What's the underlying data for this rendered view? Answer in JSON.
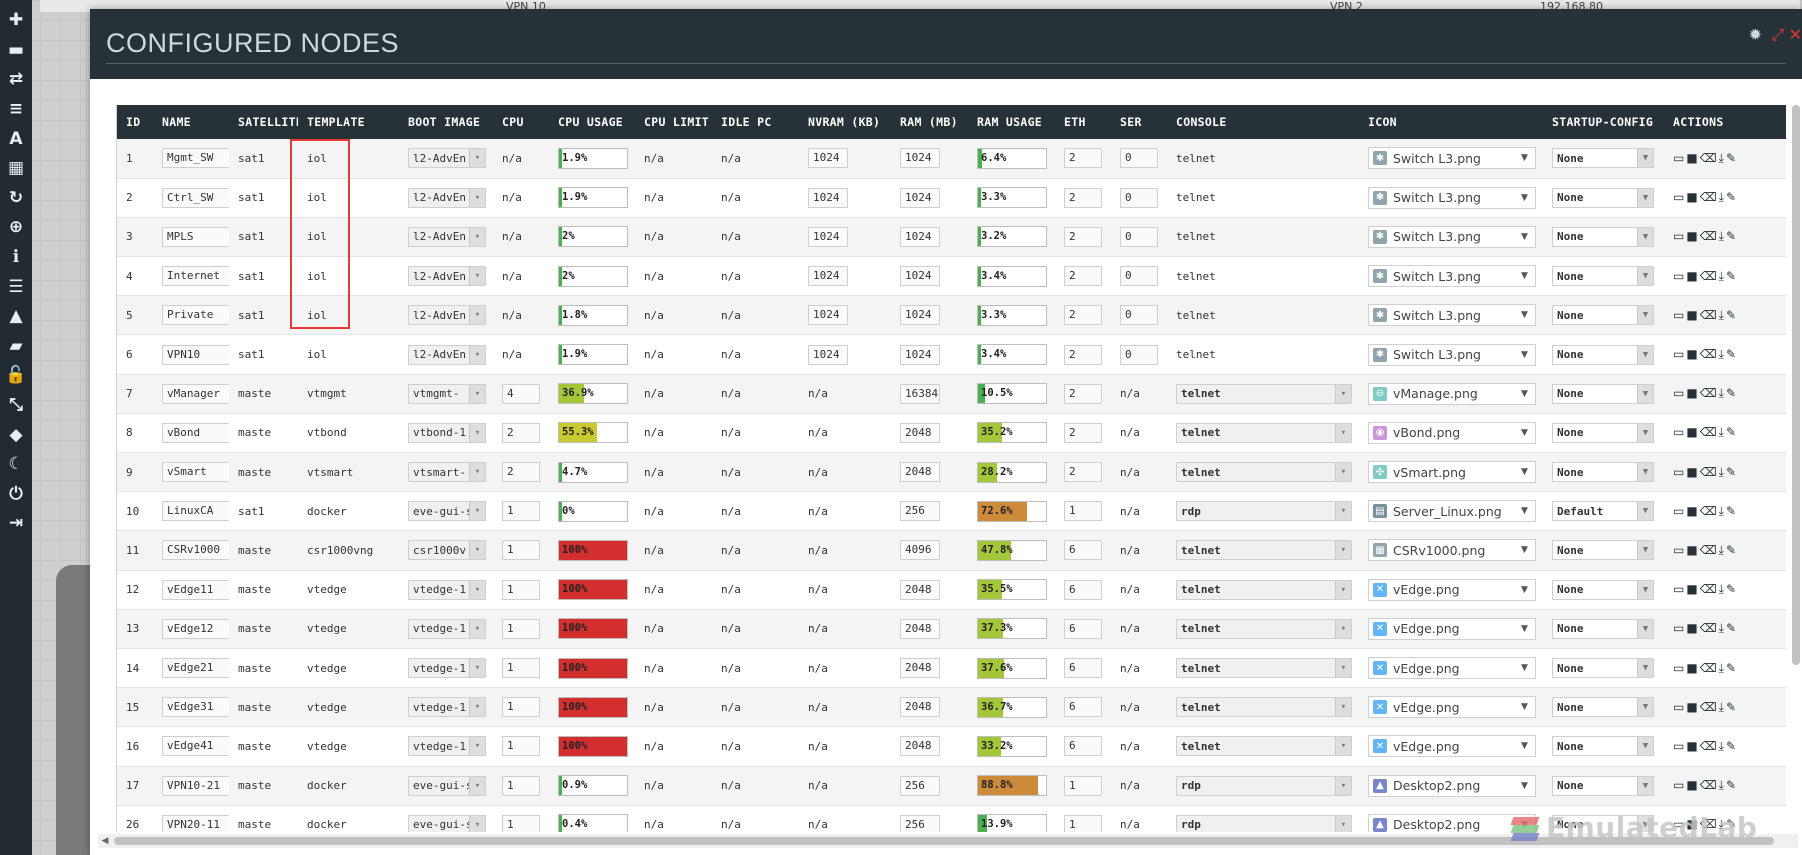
{
  "background": {
    "labels": [
      "VPN 10",
      "VPN 2",
      "192.168.80"
    ]
  },
  "sidebar": {
    "icons": [
      "plus-icon",
      "server-icon",
      "swap-icon",
      "align-left-icon",
      "text-icon",
      "grid-icon",
      "refresh-icon",
      "zoom-icon",
      "info-icon",
      "list-icon",
      "graduation-icon",
      "chat-icon",
      "lock-icon",
      "expand-icon",
      "tag-icon",
      "moon-icon",
      "power-icon",
      "logout-icon"
    ]
  },
  "modal": {
    "title": "CONFIGURED NODES",
    "controls": [
      "gear-icon",
      "expand-icon",
      "close-icon"
    ]
  },
  "table": {
    "headers": [
      "ID",
      "NAME",
      "SATELLITE",
      "TEMPLATE",
      "BOOT IMAGE",
      "CPU",
      "CPU USAGE",
      "CPU LIMIT",
      "IDLE PC",
      "NVRAM (KB)",
      "RAM (MB)",
      "RAM USAGE",
      "ETH",
      "SER",
      "CONSOLE",
      "ICON",
      "STARTUP-CONFIG",
      "ACTIONS"
    ],
    "rows": [
      {
        "id": "1",
        "name": "Mgmt_SW",
        "satellite": "sat1",
        "template": "iol",
        "boot": "l2-AdvEn",
        "cpu": "n/a",
        "cpu_usage": "1.9%",
        "cpu_pct": 1.9,
        "cpu_limit": "n/a",
        "idle_pc": "n/a",
        "nvram": "1024",
        "ram": "1024",
        "ram_usage": "6.4%",
        "ram_pct": 6.4,
        "eth": "2",
        "ser": "0",
        "console": "telnet",
        "icon": "Switch L3.png",
        "icon_type": "switch",
        "startup": "None"
      },
      {
        "id": "2",
        "name": "Ctrl_SW",
        "satellite": "sat1",
        "template": "iol",
        "boot": "l2-AdvEn",
        "cpu": "n/a",
        "cpu_usage": "1.9%",
        "cpu_pct": 1.9,
        "cpu_limit": "n/a",
        "idle_pc": "n/a",
        "nvram": "1024",
        "ram": "1024",
        "ram_usage": "3.3%",
        "ram_pct": 3.3,
        "eth": "2",
        "ser": "0",
        "console": "telnet",
        "icon": "Switch L3.png",
        "icon_type": "switch",
        "startup": "None"
      },
      {
        "id": "3",
        "name": "MPLS",
        "satellite": "sat1",
        "template": "iol",
        "boot": "l2-AdvEn",
        "cpu": "n/a",
        "cpu_usage": "2%",
        "cpu_pct": 2,
        "cpu_limit": "n/a",
        "idle_pc": "n/a",
        "nvram": "1024",
        "ram": "1024",
        "ram_usage": "3.2%",
        "ram_pct": 3.2,
        "eth": "2",
        "ser": "0",
        "console": "telnet",
        "icon": "Switch L3.png",
        "icon_type": "switch",
        "startup": "None"
      },
      {
        "id": "4",
        "name": "Internet",
        "satellite": "sat1",
        "template": "iol",
        "boot": "l2-AdvEn",
        "cpu": "n/a",
        "cpu_usage": "2%",
        "cpu_pct": 2,
        "cpu_limit": "n/a",
        "idle_pc": "n/a",
        "nvram": "1024",
        "ram": "1024",
        "ram_usage": "3.4%",
        "ram_pct": 3.4,
        "eth": "2",
        "ser": "0",
        "console": "telnet",
        "icon": "Switch L3.png",
        "icon_type": "switch",
        "startup": "None"
      },
      {
        "id": "5",
        "name": "Private",
        "satellite": "sat1",
        "template": "iol",
        "boot": "l2-AdvEn",
        "cpu": "n/a",
        "cpu_usage": "1.8%",
        "cpu_pct": 1.8,
        "cpu_limit": "n/a",
        "idle_pc": "n/a",
        "nvram": "1024",
        "ram": "1024",
        "ram_usage": "3.3%",
        "ram_pct": 3.3,
        "eth": "2",
        "ser": "0",
        "console": "telnet",
        "icon": "Switch L3.png",
        "icon_type": "switch",
        "startup": "None"
      },
      {
        "id": "6",
        "name": "VPN10",
        "satellite": "sat1",
        "template": "iol",
        "boot": "l2-AdvEn",
        "cpu": "n/a",
        "cpu_usage": "1.9%",
        "cpu_pct": 1.9,
        "cpu_limit": "n/a",
        "idle_pc": "n/a",
        "nvram": "1024",
        "ram": "1024",
        "ram_usage": "3.4%",
        "ram_pct": 3.4,
        "eth": "2",
        "ser": "0",
        "console": "telnet",
        "icon": "Switch L3.png",
        "icon_type": "switch",
        "startup": "None"
      },
      {
        "id": "7",
        "name": "vManager",
        "satellite": "maste",
        "template": "vtmgmt",
        "boot": "vtmgmt-",
        "cpu": "4",
        "cpu_usage": "36.9%",
        "cpu_pct": 36.9,
        "cpu_limit": "n/a",
        "idle_pc": "n/a",
        "nvram": "n/a",
        "ram": "16384",
        "ram_usage": "10.5%",
        "ram_pct": 10.5,
        "eth": "2",
        "ser": "n/a",
        "console": "telnet",
        "icon": "vManage.png",
        "icon_type": "vmanage",
        "startup": "None"
      },
      {
        "id": "8",
        "name": "vBond",
        "satellite": "maste",
        "template": "vtbond",
        "boot": "vtbond-1",
        "cpu": "2",
        "cpu_usage": "55.3%",
        "cpu_pct": 55.3,
        "cpu_limit": "n/a",
        "idle_pc": "n/a",
        "nvram": "n/a",
        "ram": "2048",
        "ram_usage": "35.2%",
        "ram_pct": 35.2,
        "eth": "2",
        "ser": "n/a",
        "console": "telnet",
        "icon": "vBond.png",
        "icon_type": "vbond",
        "startup": "None"
      },
      {
        "id": "9",
        "name": "vSmart",
        "satellite": "maste",
        "template": "vtsmart",
        "boot": "vtsmart-",
        "cpu": "2",
        "cpu_usage": "4.7%",
        "cpu_pct": 4.7,
        "cpu_limit": "n/a",
        "idle_pc": "n/a",
        "nvram": "n/a",
        "ram": "2048",
        "ram_usage": "28.2%",
        "ram_pct": 28.2,
        "eth": "2",
        "ser": "n/a",
        "console": "telnet",
        "icon": "vSmart.png",
        "icon_type": "vsmart",
        "startup": "None"
      },
      {
        "id": "10",
        "name": "LinuxCA",
        "satellite": "sat1",
        "template": "docker",
        "boot": "eve-gui-s",
        "cpu": "1",
        "cpu_usage": "0%",
        "cpu_pct": 0,
        "cpu_limit": "n/a",
        "idle_pc": "n/a",
        "nvram": "n/a",
        "ram": "256",
        "ram_usage": "72.6%",
        "ram_pct": 72.6,
        "eth": "1",
        "ser": "n/a",
        "console": "rdp",
        "icon": "Server_Linux.png",
        "icon_type": "server",
        "startup": "Default"
      },
      {
        "id": "11",
        "name": "CSRv1000",
        "satellite": "maste",
        "template": "csr1000vng",
        "boot": "csr1000v",
        "cpu": "1",
        "cpu_usage": "100%",
        "cpu_pct": 100,
        "cpu_limit": "n/a",
        "idle_pc": "n/a",
        "nvram": "n/a",
        "ram": "4096",
        "ram_usage": "47.8%",
        "ram_pct": 47.8,
        "eth": "6",
        "ser": "n/a",
        "console": "telnet",
        "icon": "CSRv1000.png",
        "icon_type": "csr",
        "startup": "None"
      },
      {
        "id": "12",
        "name": "vEdge11",
        "satellite": "maste",
        "template": "vtedge",
        "boot": "vtedge-1",
        "cpu": "1",
        "cpu_usage": "100%",
        "cpu_pct": 100,
        "cpu_limit": "n/a",
        "idle_pc": "n/a",
        "nvram": "n/a",
        "ram": "2048",
        "ram_usage": "35.5%",
        "ram_pct": 35.5,
        "eth": "6",
        "ser": "n/a",
        "console": "telnet",
        "icon": "vEdge.png",
        "icon_type": "vedge",
        "startup": "None"
      },
      {
        "id": "13",
        "name": "vEdge12",
        "satellite": "maste",
        "template": "vtedge",
        "boot": "vtedge-1",
        "cpu": "1",
        "cpu_usage": "100%",
        "cpu_pct": 100,
        "cpu_limit": "n/a",
        "idle_pc": "n/a",
        "nvram": "n/a",
        "ram": "2048",
        "ram_usage": "37.3%",
        "ram_pct": 37.3,
        "eth": "6",
        "ser": "n/a",
        "console": "telnet",
        "icon": "vEdge.png",
        "icon_type": "vedge",
        "startup": "None"
      },
      {
        "id": "14",
        "name": "vEdge21",
        "satellite": "maste",
        "template": "vtedge",
        "boot": "vtedge-1",
        "cpu": "1",
        "cpu_usage": "100%",
        "cpu_pct": 100,
        "cpu_limit": "n/a",
        "idle_pc": "n/a",
        "nvram": "n/a",
        "ram": "2048",
        "ram_usage": "37.6%",
        "ram_pct": 37.6,
        "eth": "6",
        "ser": "n/a",
        "console": "telnet",
        "icon": "vEdge.png",
        "icon_type": "vedge",
        "startup": "None"
      },
      {
        "id": "15",
        "name": "vEdge31",
        "satellite": "maste",
        "template": "vtedge",
        "boot": "vtedge-1",
        "cpu": "1",
        "cpu_usage": "100%",
        "cpu_pct": 100,
        "cpu_limit": "n/a",
        "idle_pc": "n/a",
        "nvram": "n/a",
        "ram": "2048",
        "ram_usage": "36.7%",
        "ram_pct": 36.7,
        "eth": "6",
        "ser": "n/a",
        "console": "telnet",
        "icon": "vEdge.png",
        "icon_type": "vedge",
        "startup": "None"
      },
      {
        "id": "16",
        "name": "vEdge41",
        "satellite": "maste",
        "template": "vtedge",
        "boot": "vtedge-1",
        "cpu": "1",
        "cpu_usage": "100%",
        "cpu_pct": 100,
        "cpu_limit": "n/a",
        "idle_pc": "n/a",
        "nvram": "n/a",
        "ram": "2048",
        "ram_usage": "33.2%",
        "ram_pct": 33.2,
        "eth": "6",
        "ser": "n/a",
        "console": "telnet",
        "icon": "vEdge.png",
        "icon_type": "vedge",
        "startup": "None"
      },
      {
        "id": "17",
        "name": "VPN10-21",
        "satellite": "maste",
        "template": "docker",
        "boot": "eve-gui-s",
        "cpu": "1",
        "cpu_usage": "0.9%",
        "cpu_pct": 0.9,
        "cpu_limit": "n/a",
        "idle_pc": "n/a",
        "nvram": "n/a",
        "ram": "256",
        "ram_usage": "88.8%",
        "ram_pct": 88.8,
        "eth": "1",
        "ser": "n/a",
        "console": "rdp",
        "icon": "Desktop2.png",
        "icon_type": "desktop",
        "startup": "None"
      },
      {
        "id": "26",
        "name": "VPN20-11",
        "satellite": "maste",
        "template": "docker",
        "boot": "eve-gui-s",
        "cpu": "1",
        "cpu_usage": "0.4%",
        "cpu_pct": 0.4,
        "cpu_limit": "n/a",
        "idle_pc": "n/a",
        "nvram": "n/a",
        "ram": "256",
        "ram_usage": "13.9%",
        "ram_pct": 13.9,
        "eth": "1",
        "ser": "n/a",
        "console": "rdp",
        "icon": "Desktop2.png",
        "icon_type": "desktop",
        "startup": "None"
      }
    ]
  },
  "colors": {
    "header_bg": "#263238",
    "usage_low": "#4caf50",
    "usage_mid": "#a4c639",
    "usage_warn": "#c9c932",
    "usage_high": "#cc8a3a",
    "usage_crit": "#d32f2f",
    "highlight": "#e53935"
  },
  "watermark": {
    "text": "EmulatedLab"
  }
}
